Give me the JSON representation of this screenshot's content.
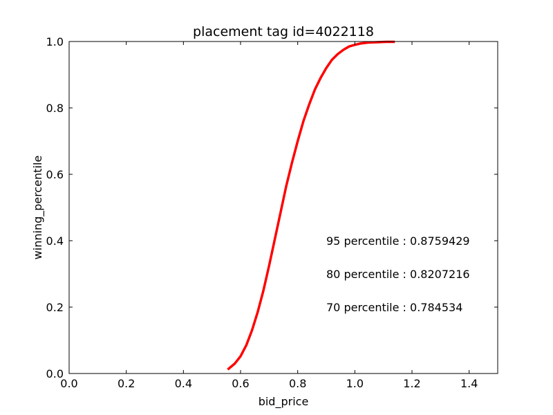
{
  "chart_data": {
    "type": "line",
    "title": "placement tag id=4022118",
    "xlabel": "bid_price",
    "ylabel": "winning_percentile",
    "xlim": [
      0.0,
      1.5
    ],
    "ylim": [
      0.0,
      1.0
    ],
    "xticks": [
      "0.0",
      "0.2",
      "0.4",
      "0.6",
      "0.8",
      "1.0",
      "1.2",
      "1.4"
    ],
    "yticks": [
      "0.0",
      "0.2",
      "0.4",
      "0.6",
      "0.8",
      "1.0"
    ],
    "grid": false,
    "series": [
      {
        "color": "#ff0000",
        "x": [
          0.555,
          0.58,
          0.6,
          0.62,
          0.64,
          0.66,
          0.68,
          0.7,
          0.72,
          0.74,
          0.76,
          0.78,
          0.8,
          0.82,
          0.84,
          0.86,
          0.88,
          0.9,
          0.92,
          0.94,
          0.96,
          0.98,
          1.0,
          1.02,
          1.05,
          1.08,
          1.11,
          1.14
        ],
        "y": [
          0.012,
          0.03,
          0.052,
          0.085,
          0.13,
          0.185,
          0.25,
          0.325,
          0.405,
          0.485,
          0.565,
          0.635,
          0.7,
          0.76,
          0.81,
          0.855,
          0.89,
          0.92,
          0.945,
          0.962,
          0.975,
          0.985,
          0.99,
          0.994,
          0.997,
          0.998,
          0.999,
          0.999
        ]
      }
    ],
    "annotations": [
      {
        "text": "95 percentile : 0.8759429",
        "x": 0.9,
        "y": 0.4
      },
      {
        "text": "80 percentile : 0.8207216",
        "x": 0.9,
        "y": 0.3
      },
      {
        "text": "70 percentile : 0.784534",
        "x": 0.9,
        "y": 0.2
      }
    ]
  }
}
